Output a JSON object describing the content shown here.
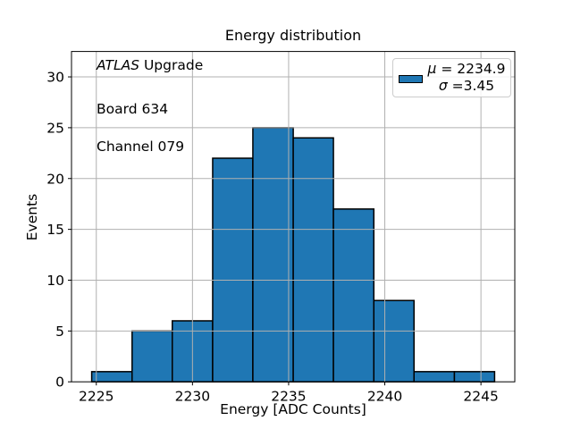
{
  "chart_data": {
    "type": "bar",
    "subtype": "histogram",
    "title": "Energy distribution",
    "xlabel": "Energy [ADC Counts]",
    "ylabel": "Events",
    "bin_edges": [
      2224.76,
      2226.86,
      2228.95,
      2231.05,
      2233.14,
      2235.24,
      2237.33,
      2239.43,
      2241.52,
      2243.62,
      2245.71
    ],
    "counts": [
      1,
      5,
      6,
      22,
      25,
      24,
      17,
      8,
      1,
      1
    ],
    "xlim": [
      2223.71,
      2246.76
    ],
    "ylim": [
      0,
      32.5
    ],
    "xticks": [
      2225,
      2230,
      2235,
      2240,
      2245
    ],
    "yticks": [
      0,
      5,
      10,
      15,
      20,
      25,
      30
    ],
    "grid": true,
    "grid_above_bars": true,
    "legend_position": "upper right",
    "colors": {
      "bar_fill": "#1f77b4",
      "bar_edge": "#000000",
      "grid": "#b0b0b0",
      "spine": "#000000",
      "legend_border": "#cccccc",
      "background": "#ffffff"
    },
    "legend": {
      "swatch_color": "#1f77b4",
      "mu_symbol": "μ",
      "mu_value": " = 2234.9",
      "sigma_symbol": "σ",
      "sigma_value": " =3.45"
    },
    "annotation": {
      "experiment": "ATLAS",
      "experiment_suffix": " Upgrade",
      "board": "Board 634",
      "channel": "Channel 079"
    }
  }
}
